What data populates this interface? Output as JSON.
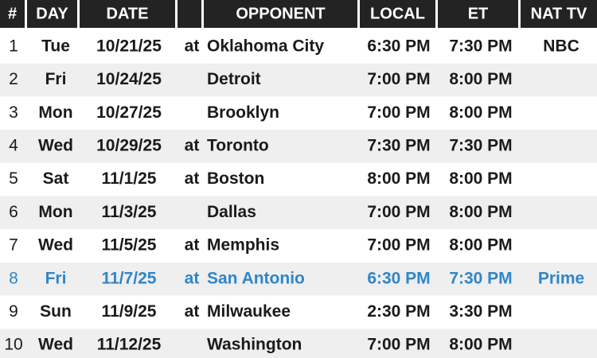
{
  "table": {
    "columns": [
      "#",
      "DAY",
      "DATE",
      "OPPONENT",
      "LOCAL",
      "ET",
      "NAT TV"
    ],
    "rows": [
      {
        "num": "1",
        "day": "Tue",
        "date": "10/21/25",
        "at": "at",
        "opponent": "Oklahoma City",
        "local": "6:30 PM",
        "et": "7:30 PM",
        "tv": "NBC"
      },
      {
        "num": "2",
        "day": "Fri",
        "date": "10/24/25",
        "opponent": "Detroit",
        "local": "7:00 PM",
        "et": "8:00 PM"
      },
      {
        "num": "3",
        "day": "Mon",
        "date": "10/27/25",
        "opponent": "Brooklyn",
        "local": "7:00 PM",
        "et": "8:00 PM"
      },
      {
        "num": "4",
        "day": "Wed",
        "date": "10/29/25",
        "at": "at",
        "opponent": "Toronto",
        "local": "7:30 PM",
        "et": "7:30 PM"
      },
      {
        "num": "5",
        "day": "Sat",
        "date": "11/1/25",
        "at": "at",
        "opponent": "Boston",
        "local": "8:00 PM",
        "et": "8:00 PM"
      },
      {
        "num": "6",
        "day": "Mon",
        "date": "11/3/25",
        "opponent": "Dallas",
        "local": "7:00 PM",
        "et": "8:00 PM"
      },
      {
        "num": "7",
        "day": "Wed",
        "date": "11/5/25",
        "at": "at",
        "opponent": "Memphis",
        "local": "7:00 PM",
        "et": "8:00 PM"
      },
      {
        "num": "8",
        "day": "Fri",
        "date": "11/7/25",
        "at": "at",
        "opponent": "San Antonio",
        "local": "6:30 PM",
        "et": "7:30 PM",
        "tv": "Prime",
        "color": "#2f86c8"
      },
      {
        "num": "9",
        "day": "Sun",
        "date": "11/9/25",
        "at": "at",
        "opponent": "Milwaukee",
        "local": "2:30 PM",
        "et": "3:30 PM"
      },
      {
        "num": "10",
        "day": "Wed",
        "date": "11/12/25",
        "opponent": "Washington",
        "local": "7:00 PM",
        "et": "8:00 PM"
      }
    ]
  }
}
